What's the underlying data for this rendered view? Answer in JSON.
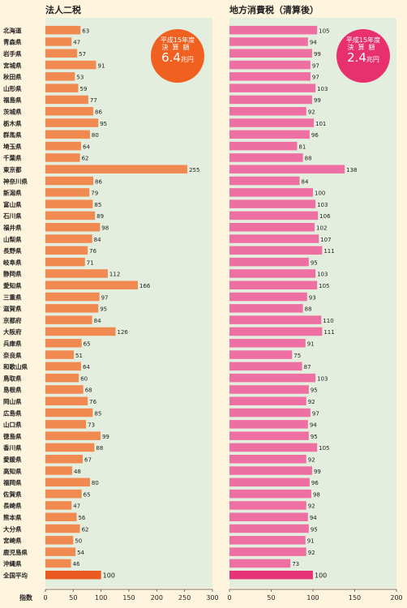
{
  "chart_data": [
    {
      "type": "bar",
      "orientation": "horizontal",
      "title": "法人二税",
      "categories": [
        "北海道",
        "青森県",
        "岩手県",
        "宮城県",
        "秋田県",
        "山形県",
        "福島県",
        "茨城県",
        "栃木県",
        "群馬県",
        "埼玉県",
        "千葉県",
        "東京都",
        "神奈川県",
        "新潟県",
        "富山県",
        "石川県",
        "福井県",
        "山梨県",
        "長野県",
        "岐阜県",
        "静岡県",
        "愛知県",
        "三重県",
        "滋賀県",
        "京都府",
        "大阪府",
        "兵庫県",
        "奈良県",
        "和歌山県",
        "鳥取県",
        "島根県",
        "岡山県",
        "広島県",
        "山口県",
        "徳島県",
        "香川県",
        "愛媛県",
        "高知県",
        "福岡県",
        "佐賀県",
        "長崎県",
        "熊本県",
        "大分県",
        "宮崎県",
        "鹿児島県",
        "沖縄県",
        "全国平均"
      ],
      "values": [
        63,
        47,
        57,
        91,
        53,
        59,
        77,
        86,
        95,
        80,
        64,
        62,
        255,
        86,
        79,
        85,
        89,
        98,
        84,
        76,
        71,
        112,
        166,
        97,
        95,
        84,
        126,
        65,
        51,
        64,
        60,
        68,
        76,
        85,
        73,
        99,
        88,
        67,
        48,
        80,
        65,
        47,
        56,
        62,
        50,
        54,
        46,
        100
      ],
      "xlim": [
        0,
        300
      ],
      "xticks": [
        0,
        50,
        100,
        150,
        200,
        250,
        300
      ],
      "xlabel": "指数",
      "color": "#f08a50",
      "highlight_color": "#e85a20",
      "badge": {
        "line1": "平成15年度",
        "line2": "決算額",
        "amount": "6.4",
        "unit": "兆円",
        "color": "#f06020"
      }
    },
    {
      "type": "bar",
      "orientation": "horizontal",
      "title": "地方消費税（清算後）",
      "categories": [
        "北海道",
        "青森県",
        "岩手県",
        "宮城県",
        "秋田県",
        "山形県",
        "福島県",
        "茨城県",
        "栃木県",
        "群馬県",
        "埼玉県",
        "千葉県",
        "東京都",
        "神奈川県",
        "新潟県",
        "富山県",
        "石川県",
        "福井県",
        "山梨県",
        "長野県",
        "岐阜県",
        "静岡県",
        "愛知県",
        "三重県",
        "滋賀県",
        "京都府",
        "大阪府",
        "兵庫県",
        "奈良県",
        "和歌山県",
        "鳥取県",
        "島根県",
        "岡山県",
        "広島県",
        "山口県",
        "徳島県",
        "香川県",
        "愛媛県",
        "高知県",
        "福岡県",
        "佐賀県",
        "長崎県",
        "熊本県",
        "大分県",
        "宮崎県",
        "鹿児島県",
        "沖縄県",
        "全国平均"
      ],
      "values": [
        105,
        94,
        99,
        97,
        97,
        103,
        99,
        92,
        101,
        96,
        81,
        88,
        138,
        84,
        100,
        103,
        106,
        102,
        107,
        111,
        95,
        103,
        105,
        93,
        88,
        110,
        111,
        91,
        75,
        87,
        103,
        95,
        92,
        97,
        94,
        95,
        105,
        92,
        99,
        96,
        98,
        92,
        94,
        95,
        91,
        92,
        73,
        100
      ],
      "xlim": [
        0,
        200
      ],
      "xticks": [
        0,
        50,
        100,
        150,
        200
      ],
      "color": "#ee6fa2",
      "highlight_color": "#e63477",
      "badge": {
        "line1": "平成15年度",
        "line2": "決算額",
        "amount": "2.4",
        "unit": "兆円",
        "color": "#e8306e"
      }
    }
  ]
}
